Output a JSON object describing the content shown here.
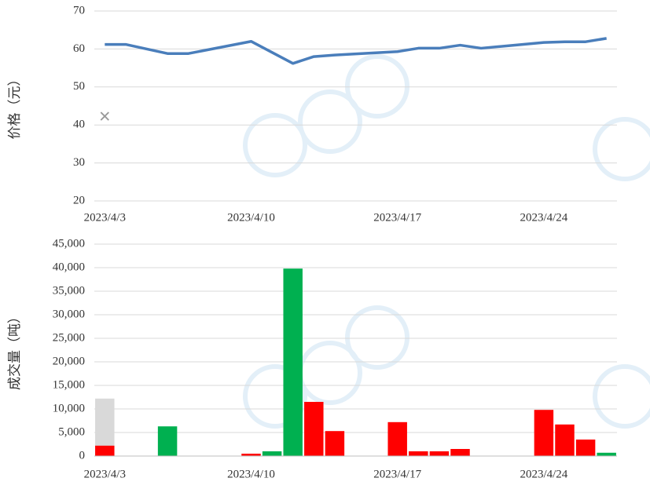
{
  "chart_data": [
    {
      "type": "line",
      "ylabel": "价格（元）",
      "xlim": [
        "2023/4/3",
        "2023/4/27"
      ],
      "xticks": [
        "2023/4/3",
        "2023/4/10",
        "2023/4/17",
        "2023/4/24"
      ],
      "ylim": [
        20,
        70
      ],
      "yticks": [
        20,
        30,
        40,
        50,
        60,
        70
      ],
      "grid": true,
      "series": [
        {
          "color": "#4a7ebb",
          "marker": "line",
          "x": [
            "2023/4/3",
            "2023/4/4",
            "2023/4/6",
            "2023/4/7",
            "2023/4/10",
            "2023/4/12",
            "2023/4/13",
            "2023/4/14",
            "2023/4/17",
            "2023/4/18",
            "2023/4/19",
            "2023/4/20",
            "2023/4/21",
            "2023/4/24",
            "2023/4/25",
            "2023/4/26",
            "2023/4/27"
          ],
          "values": [
            61.2,
            61.2,
            58.8,
            58.8,
            62,
            56.2,
            58,
            58.4,
            59.3,
            60.2,
            60.2,
            61,
            60.2,
            61.7,
            61.9,
            61.9,
            62.8
          ]
        },
        {
          "color": "#999999",
          "marker": "cross",
          "x": [
            "2023/4/3"
          ],
          "values": [
            42.3
          ]
        }
      ]
    },
    {
      "type": "bar",
      "ylabel": "成交量（吨）",
      "xlim": [
        "2023/4/3",
        "2023/4/27"
      ],
      "xticks": [
        "2023/4/3",
        "2023/4/10",
        "2023/4/17",
        "2023/4/24"
      ],
      "ylim": [
        0,
        45000
      ],
      "yticks": [
        0,
        {
          "value": 5000,
          "label": "5,000"
        },
        {
          "value": 10000,
          "label": "10,000"
        },
        {
          "value": 15000,
          "label": "15,000"
        },
        {
          "value": 20000,
          "label": "20,000"
        },
        {
          "value": 25000,
          "label": "25,000"
        },
        {
          "value": 30000,
          "label": "30,000"
        },
        {
          "value": 35000,
          "label": "35,000"
        },
        {
          "value": 40000,
          "label": "40,000"
        },
        {
          "value": 45000,
          "label": "45,000"
        }
      ],
      "grid": true,
      "series": [
        {
          "color": "#d9d9d9",
          "x": [
            "2023/4/3"
          ],
          "values": [
            12200
          ]
        },
        {
          "colors": [
            "#ff0000",
            "#00b050",
            "#ff0000",
            "#00b050",
            "#00b050",
            "#ff0000",
            "#ff0000",
            "#ff0000",
            "#ff0000",
            "#ff0000",
            "#ff0000",
            "#ff0000",
            "#ff0000",
            "#ff0000",
            "#00b050"
          ],
          "x": [
            "2023/4/3",
            "2023/4/6",
            "2023/4/10",
            "2023/4/11",
            "2023/4/12",
            "2023/4/13",
            "2023/4/14",
            "2023/4/17",
            "2023/4/18",
            "2023/4/19",
            "2023/4/20",
            "2023/4/24",
            "2023/4/25",
            "2023/4/26",
            "2023/4/27"
          ],
          "values": [
            2200,
            6300,
            500,
            1000,
            39800,
            11500,
            5300,
            7200,
            1000,
            1000,
            1500,
            9800,
            6700,
            3500,
            700
          ]
        }
      ]
    }
  ]
}
